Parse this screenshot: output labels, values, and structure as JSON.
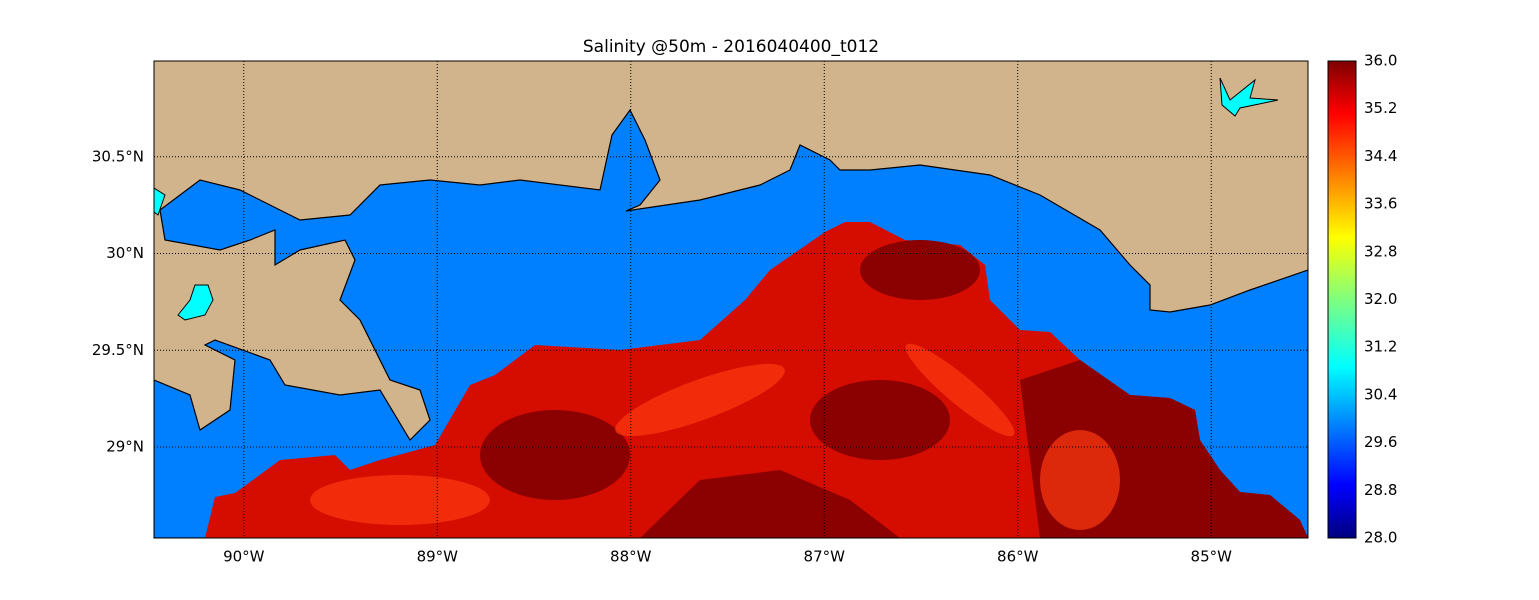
{
  "chart_data": {
    "type": "map",
    "title": "Salinity @50m - 2016040400_t012",
    "xlim": [
      -90.464,
      -84.5
    ],
    "ylim": [
      28.53,
      30.995
    ],
    "xticks": [
      {
        "value": -90,
        "label": "90°W"
      },
      {
        "value": -89,
        "label": "89°W"
      },
      {
        "value": -88,
        "label": "88°W"
      },
      {
        "value": -87,
        "label": "87°W"
      },
      {
        "value": -86,
        "label": "86°W"
      },
      {
        "value": -85,
        "label": "85°W"
      }
    ],
    "yticks": [
      {
        "value": 29,
        "label": "29°N"
      },
      {
        "value": 29.5,
        "label": "29.5°N"
      },
      {
        "value": 30,
        "label": "30°N"
      },
      {
        "value": 30.5,
        "label": "30.5°N"
      }
    ],
    "grid": true,
    "colorbar": {
      "clim": [
        28,
        36
      ],
      "ticks": [
        {
          "value": 28,
          "label": "28.0"
        },
        {
          "value": 28.8,
          "label": "28.8"
        },
        {
          "value": 29.6,
          "label": "29.6"
        },
        {
          "value": 30.4,
          "label": "30.4"
        },
        {
          "value": 31.2,
          "label": "31.2"
        },
        {
          "value": 32,
          "label": "32.0"
        },
        {
          "value": 32.8,
          "label": "32.8"
        },
        {
          "value": 33.6,
          "label": "33.6"
        },
        {
          "value": 34.4,
          "label": "34.4"
        },
        {
          "value": 35.2,
          "label": "35.2"
        },
        {
          "value": 36,
          "label": "36.0"
        }
      ]
    }
  }
}
